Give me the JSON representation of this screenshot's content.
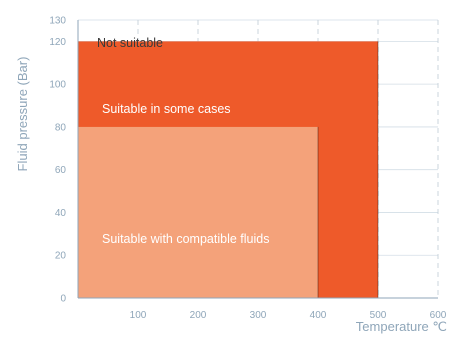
{
  "chart_data": {
    "type": "area",
    "title": "",
    "xlabel": "Temperature ℃",
    "ylabel": "Fluid pressure  (Bar)",
    "xlim": [
      0,
      600
    ],
    "ylim": [
      0,
      130
    ],
    "x_ticks": [
      100,
      200,
      300,
      400,
      500,
      600
    ],
    "y_ticks": [
      0,
      20,
      40,
      60,
      80,
      100,
      120,
      130
    ],
    "grid": true,
    "grid_style": "dashed",
    "regions": [
      {
        "label": "Not suitable",
        "x_range": [
          0,
          600
        ],
        "y_range": [
          120,
          130
        ],
        "color": "#ffffff",
        "text_color": "#3a3a3a"
      },
      {
        "label": "Suitable in some cases",
        "x_range": [
          0,
          500
        ],
        "y_range": [
          0,
          120
        ],
        "color": "#ee5a2a",
        "text_color": "#ffffff"
      },
      {
        "label": "Suitable with compatible fluids",
        "x_range": [
          0,
          400
        ],
        "y_range": [
          0,
          80
        ],
        "color": "#f4a27a",
        "text_color": "#ffffff"
      }
    ]
  }
}
